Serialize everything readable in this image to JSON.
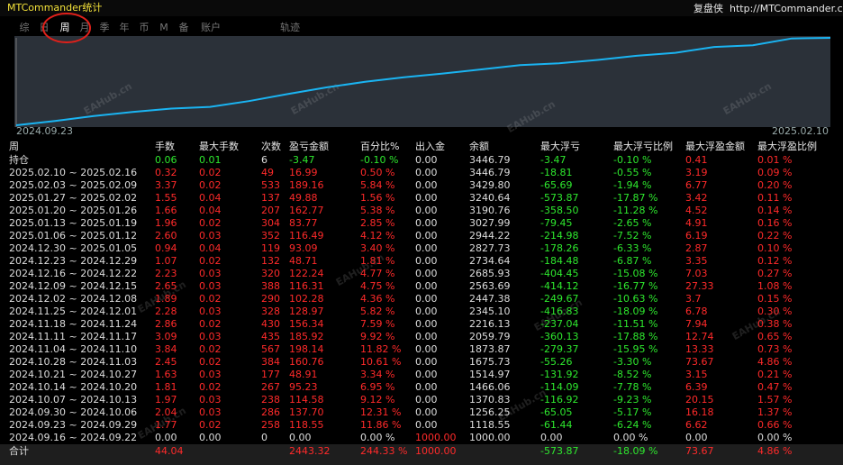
{
  "header": {
    "title": "MTCommander统计",
    "brand": "复盘侠",
    "url": "http://MTCommander.com"
  },
  "tabs": [
    "综",
    "日",
    "周",
    "月",
    "季",
    "年",
    "币",
    "M",
    "备",
    "账户"
  ],
  "track": "轨迹",
  "active_tab": 2,
  "watermark": "EAHub.cn",
  "chart": {
    "x_start": "2024.09.23",
    "x_end": "2025.02.10",
    "line_color": "#1ab4f2"
  },
  "table": {
    "header": [
      "周",
      "手数",
      "最大手数",
      "次数",
      "盈亏金额",
      "百分比%",
      "出入金",
      "余额",
      "最大浮亏",
      "最大浮亏比例",
      "最大浮盈金额",
      "最大浮盈比例"
    ],
    "column_colors": [
      "#dddddd",
      "#ff2a2a",
      "#ff2a2a",
      "#ff2a2a",
      "#ff2a2a",
      "#ff2a2a",
      "#dddddd",
      "#dddddd",
      "#2ee82e",
      "#2ee82e",
      "#ff2a2a",
      "#ff2a2a"
    ],
    "holding": {
      "cells": [
        "持仓",
        "0.06",
        "0.01",
        "6",
        "-3.47",
        "-0.10 %",
        "0.00",
        "3446.79",
        "-3.47",
        "-0.10 %",
        "0.41",
        "0.01 %"
      ],
      "colors": [
        "#dddddd",
        "#2ee82e",
        "#2ee82e",
        "#dddddd",
        "#2ee82e",
        "#2ee82e",
        "#dddddd",
        "#dddddd",
        "#2ee82e",
        "#2ee82e",
        "#ff2a2a",
        "#ff2a2a"
      ]
    },
    "rows": [
      {
        "cells": [
          "2025.02.10 ~ 2025.02.16",
          "0.32",
          "0.02",
          "49",
          "16.99",
          "0.50 %",
          "0.00",
          "3446.79",
          "-18.81",
          "-0.55 %",
          "3.19",
          "0.09 %"
        ]
      },
      {
        "cells": [
          "2025.02.03 ~ 2025.02.09",
          "3.37",
          "0.02",
          "533",
          "189.16",
          "5.84 %",
          "0.00",
          "3429.80",
          "-65.69",
          "-1.94 %",
          "6.77",
          "0.20 %"
        ]
      },
      {
        "cells": [
          "2025.01.27 ~ 2025.02.02",
          "1.55",
          "0.04",
          "137",
          "49.88",
          "1.56 %",
          "0.00",
          "3240.64",
          "-573.87",
          "-17.87 %",
          "3.42",
          "0.11 %"
        ]
      },
      {
        "cells": [
          "2025.01.20 ~ 2025.01.26",
          "1.66",
          "0.04",
          "207",
          "162.77",
          "5.38 %",
          "0.00",
          "3190.76",
          "-358.50",
          "-11.28 %",
          "4.52",
          "0.14 %"
        ]
      },
      {
        "cells": [
          "2025.01.13 ~ 2025.01.19",
          "1.96",
          "0.02",
          "304",
          "83.77",
          "2.85 %",
          "0.00",
          "3027.99",
          "-79.45",
          "-2.65 %",
          "4.91",
          "0.16 %"
        ]
      },
      {
        "cells": [
          "2025.01.06 ~ 2025.01.12",
          "2.60",
          "0.03",
          "352",
          "116.49",
          "4.12 %",
          "0.00",
          "2944.22",
          "-214.98",
          "-7.52 %",
          "6.19",
          "0.22 %"
        ]
      },
      {
        "cells": [
          "2024.12.30 ~ 2025.01.05",
          "0.94",
          "0.04",
          "119",
          "93.09",
          "3.40 %",
          "0.00",
          "2827.73",
          "-178.26",
          "-6.33 %",
          "2.87",
          "0.10 %"
        ]
      },
      {
        "cells": [
          "2024.12.23 ~ 2024.12.29",
          "1.07",
          "0.02",
          "132",
          "48.71",
          "1.81 %",
          "0.00",
          "2734.64",
          "-184.48",
          "-6.87 %",
          "3.35",
          "0.12 %"
        ]
      },
      {
        "cells": [
          "2024.12.16 ~ 2024.12.22",
          "2.23",
          "0.03",
          "320",
          "122.24",
          "4.77 %",
          "0.00",
          "2685.93",
          "-404.45",
          "-15.08 %",
          "7.03",
          "0.27 %"
        ]
      },
      {
        "cells": [
          "2024.12.09 ~ 2024.12.15",
          "2.65",
          "0.03",
          "388",
          "116.31",
          "4.75 %",
          "0.00",
          "2563.69",
          "-414.12",
          "-16.77 %",
          "27.33",
          "1.08 %"
        ]
      },
      {
        "cells": [
          "2024.12.02 ~ 2024.12.08",
          "1.89",
          "0.02",
          "290",
          "102.28",
          "4.36 %",
          "0.00",
          "2447.38",
          "-249.67",
          "-10.63 %",
          "3.7",
          "0.15 %"
        ]
      },
      {
        "cells": [
          "2024.11.25 ~ 2024.12.01",
          "2.28",
          "0.03",
          "328",
          "128.97",
          "5.82 %",
          "0.00",
          "2345.10",
          "-416.83",
          "-18.09 %",
          "6.78",
          "0.30 %"
        ]
      },
      {
        "cells": [
          "2024.11.18 ~ 2024.11.24",
          "2.86",
          "0.02",
          "430",
          "156.34",
          "7.59 %",
          "0.00",
          "2216.13",
          "-237.04",
          "-11.51 %",
          "7.94",
          "0.38 %"
        ]
      },
      {
        "cells": [
          "2024.11.11 ~ 2024.11.17",
          "3.09",
          "0.03",
          "435",
          "185.92",
          "9.92 %",
          "0.00",
          "2059.79",
          "-360.13",
          "-17.88 %",
          "12.74",
          "0.65 %"
        ]
      },
      {
        "cells": [
          "2024.11.04 ~ 2024.11.10",
          "3.84",
          "0.02",
          "567",
          "198.14",
          "11.82 %",
          "0.00",
          "1873.87",
          "-279.37",
          "-15.95 %",
          "13.33",
          "0.73 %"
        ]
      },
      {
        "cells": [
          "2024.10.28 ~ 2024.11.03",
          "2.45",
          "0.02",
          "384",
          "160.76",
          "10.61 %",
          "0.00",
          "1675.73",
          "-55.26",
          "-3.30 %",
          "73.67",
          "4.86 %"
        ]
      },
      {
        "cells": [
          "2024.10.21 ~ 2024.10.27",
          "1.63",
          "0.03",
          "177",
          "48.91",
          "3.34 %",
          "0.00",
          "1514.97",
          "-131.92",
          "-8.52 %",
          "3.15",
          "0.21 %"
        ]
      },
      {
        "cells": [
          "2024.10.14 ~ 2024.10.20",
          "1.81",
          "0.02",
          "267",
          "95.23",
          "6.95 %",
          "0.00",
          "1466.06",
          "-114.09",
          "-7.78 %",
          "6.39",
          "0.47 %"
        ]
      },
      {
        "cells": [
          "2024.10.07 ~ 2024.10.13",
          "1.97",
          "0.03",
          "238",
          "114.58",
          "9.12 %",
          "0.00",
          "1370.83",
          "-116.92",
          "-9.23 %",
          "20.15",
          "1.57 %"
        ]
      },
      {
        "cells": [
          "2024.09.30 ~ 2024.10.06",
          "2.04",
          "0.03",
          "286",
          "137.70",
          "12.31 %",
          "0.00",
          "1256.25",
          "-65.05",
          "-5.17 %",
          "16.18",
          "1.37 %"
        ]
      },
      {
        "cells": [
          "2024.09.23 ~ 2024.09.29",
          "1.77",
          "0.02",
          "258",
          "118.55",
          "11.86 %",
          "0.00",
          "1118.55",
          "-61.44",
          "-6.24 %",
          "6.62",
          "0.66 %"
        ]
      },
      {
        "cells": [
          "2024.09.16 ~ 2024.09.22",
          "0.00",
          "0.00",
          "0",
          "0.00",
          "0.00 %",
          "1000.00",
          "1000.00",
          "0.00",
          "0.00 %",
          "0.00",
          "0.00 %"
        ],
        "colors": [
          "#dddddd",
          "#dddddd",
          "#dddddd",
          "#dddddd",
          "#dddddd",
          "#dddddd",
          "#ff2a2a",
          "#dddddd",
          "#dddddd",
          "#dddddd",
          "#dddddd",
          "#dddddd"
        ]
      }
    ],
    "total": {
      "cells": [
        "合计",
        "44.04",
        null,
        null,
        "2443.32",
        "244.33 %",
        "1000.00",
        null,
        "-573.87",
        "-18.09 %",
        "73.67",
        "4.86 %"
      ],
      "colors": [
        "#dddddd",
        "#ff2a2a",
        null,
        null,
        "#ff2a2a",
        "#ff2a2a",
        "#ff2a2a",
        null,
        "#2ee82e",
        "#2ee82e",
        "#ff2a2a",
        "#ff2a2a"
      ]
    }
  }
}
